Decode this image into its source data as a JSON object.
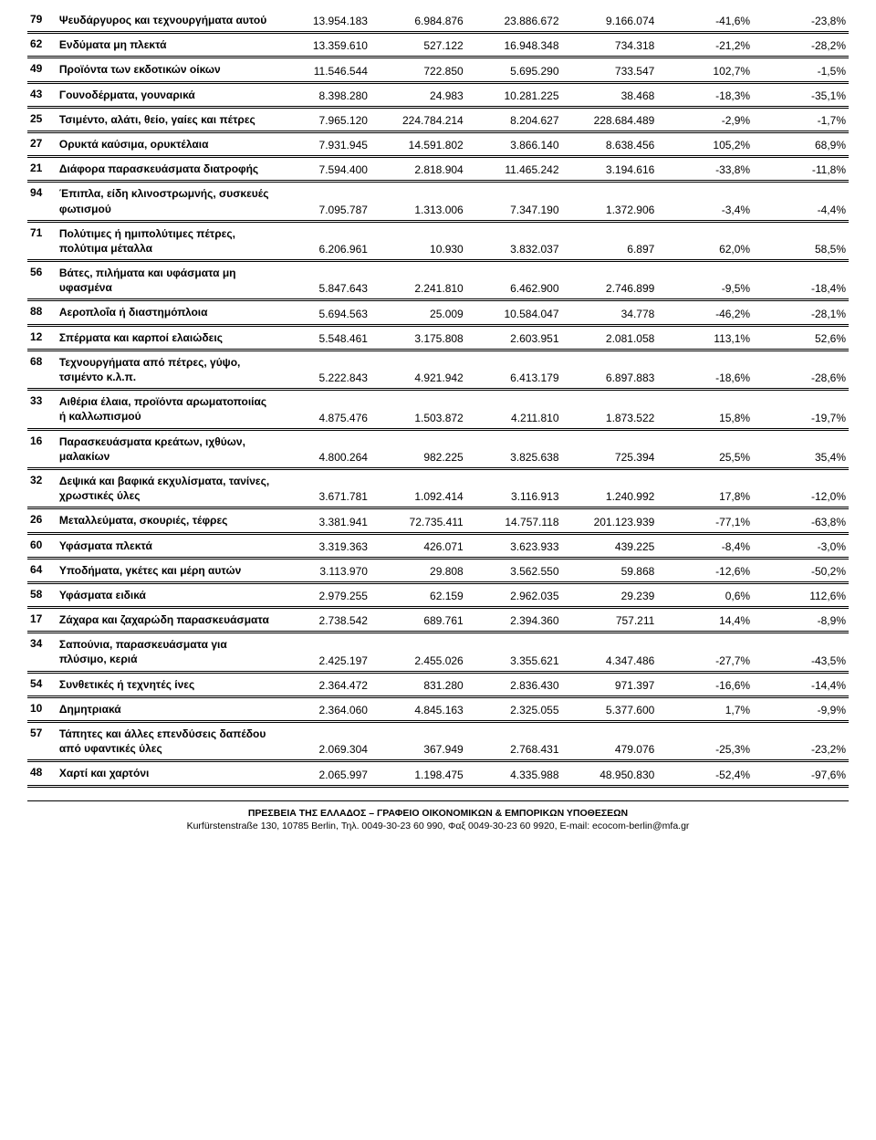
{
  "columns": [
    "id",
    "desc",
    "v1",
    "v2",
    "v3",
    "v4",
    "p1",
    "p2"
  ],
  "rows": [
    [
      "79",
      "Ψευδάργυρος και τεχνουργήματα αυτού",
      "13.954.183",
      "6.984.876",
      "23.886.672",
      "9.166.074",
      "-41,6%",
      "-23,8%"
    ],
    [
      "62",
      "Ενδύματα μη πλεκτά",
      "13.359.610",
      "527.122",
      "16.948.348",
      "734.318",
      "-21,2%",
      "-28,2%"
    ],
    [
      "49",
      "Προϊόντα των εκδοτικών οίκων",
      "11.546.544",
      "722.850",
      "5.695.290",
      "733.547",
      "102,7%",
      "-1,5%"
    ],
    [
      "43",
      "Γουνοδέρματα, γουναρικά",
      "8.398.280",
      "24.983",
      "10.281.225",
      "38.468",
      "-18,3%",
      "-35,1%"
    ],
    [
      "25",
      "Τσιμέντο, αλάτι, θείο, γαίες και πέτρες",
      "7.965.120",
      "224.784.214",
      "8.204.627",
      "228.684.489",
      "-2,9%",
      "-1,7%"
    ],
    [
      "27",
      "Ορυκτά καύσιμα, ορυκτέλαια",
      "7.931.945",
      "14.591.802",
      "3.866.140",
      "8.638.456",
      "105,2%",
      "68,9%"
    ],
    [
      "21",
      "Διάφορα παρασκευάσματα διατροφής",
      "7.594.400",
      "2.818.904",
      "11.465.242",
      "3.194.616",
      "-33,8%",
      "-11,8%"
    ],
    [
      "94",
      "Έπιπλα, είδη κλινοστρωμνής, συσκευές φωτισμού",
      "7.095.787",
      "1.313.006",
      "7.347.190",
      "1.372.906",
      "-3,4%",
      "-4,4%"
    ],
    [
      "71",
      "Πολύτιμες ή ημιπολύτιμες πέτρες, πολύτιμα μέταλλα",
      "6.206.961",
      "10.930",
      "3.832.037",
      "6.897",
      "62,0%",
      "58,5%"
    ],
    [
      "56",
      "Βάτες, πιλήματα και υφάσματα μη υφασμένα",
      "5.847.643",
      "2.241.810",
      "6.462.900",
      "2.746.899",
      "-9,5%",
      "-18,4%"
    ],
    [
      "88",
      "Αεροπλοΐα ή διαστημόπλοια",
      "5.694.563",
      "25.009",
      "10.584.047",
      "34.778",
      "-46,2%",
      "-28,1%"
    ],
    [
      "12",
      "Σπέρματα και καρποί ελαιώδεις",
      "5.548.461",
      "3.175.808",
      "2.603.951",
      "2.081.058",
      "113,1%",
      "52,6%"
    ],
    [
      "68",
      "Τεχνουργήματα από πέτρες, γύψο, τσιμέντο κ.λ.π.",
      "5.222.843",
      "4.921.942",
      "6.413.179",
      "6.897.883",
      "-18,6%",
      "-28,6%"
    ],
    [
      "33",
      "Αιθέρια έλαια, προϊόντα αρωματοποιίας ή καλλωπισμού",
      "4.875.476",
      "1.503.872",
      "4.211.810",
      "1.873.522",
      "15,8%",
      "-19,7%"
    ],
    [
      "16",
      "Παρασκευάσματα κρεάτων, ιχθύων, μαλακίων",
      "4.800.264",
      "982.225",
      "3.825.638",
      "725.394",
      "25,5%",
      "35,4%"
    ],
    [
      "32",
      "Δεψικά και βαφικά εκχυλίσματα, τανίνες, χρωστικές ύλες",
      "3.671.781",
      "1.092.414",
      "3.116.913",
      "1.240.992",
      "17,8%",
      "-12,0%"
    ],
    [
      "26",
      "Μεταλλεύματα, σκουριές, τέφρες",
      "3.381.941",
      "72.735.411",
      "14.757.118",
      "201.123.939",
      "-77,1%",
      "-63,8%"
    ],
    [
      "60",
      "Υφάσματα πλεκτά",
      "3.319.363",
      "426.071",
      "3.623.933",
      "439.225",
      "-8,4%",
      "-3,0%"
    ],
    [
      "64",
      "Υποδήματα, γκέτες και μέρη αυτών",
      "3.113.970",
      "29.808",
      "3.562.550",
      "59.868",
      "-12,6%",
      "-50,2%"
    ],
    [
      "58",
      "Υφάσματα ειδικά",
      "2.979.255",
      "62.159",
      "2.962.035",
      "29.239",
      "0,6%",
      "112,6%"
    ],
    [
      "17",
      "Ζάχαρα και ζαχαρώδη παρασκευάσματα",
      "2.738.542",
      "689.761",
      "2.394.360",
      "757.211",
      "14,4%",
      "-8,9%"
    ],
    [
      "34",
      "Σαπούνια, παρασκευάσματα για πλύσιμο, κεριά",
      "2.425.197",
      "2.455.026",
      "3.355.621",
      "4.347.486",
      "-27,7%",
      "-43,5%"
    ],
    [
      "54",
      "Συνθετικές ή τεχνητές ίνες",
      "2.364.472",
      "831.280",
      "2.836.430",
      "971.397",
      "-16,6%",
      "-14,4%"
    ],
    [
      "10",
      "Δημητριακά",
      "2.364.060",
      "4.845.163",
      "2.325.055",
      "5.377.600",
      "1,7%",
      "-9,9%"
    ],
    [
      "57",
      "Τάπητες και άλλες επενδύσεις δαπέδου από υφαντικές ύλες",
      "2.069.304",
      "367.949",
      "2.768.431",
      "479.076",
      "-25,3%",
      "-23,2%"
    ],
    [
      "48",
      "Χαρτί και χαρτόνι",
      "2.065.997",
      "1.198.475",
      "4.335.988",
      "48.950.830",
      "-52,4%",
      "-97,6%"
    ]
  ],
  "footer": {
    "title": "ΠΡΕΣΒΕΙΑ ΤΗΣ ΕΛΛΑΔΟΣ – ΓΡΑΦΕΙΟ ΟΙΚΟΝΟΜΙΚΩΝ & ΕΜΠΟΡΙΚΩΝ ΥΠΟΘΕΣΕΩΝ",
    "address": "Kurfürstenstraße 130, 10785 Berlin, Τηλ. 0049-30-23 60 990, Φαξ 0049-30-23 60 9920, E-mail: ecocom-berlin@mfa.gr"
  }
}
